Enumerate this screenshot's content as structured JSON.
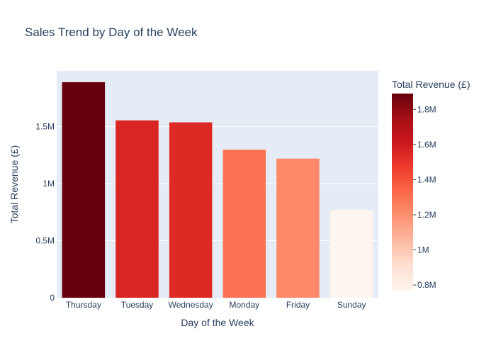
{
  "chart_data": {
    "type": "bar",
    "title": "Sales Trend by Day of the Week",
    "xlabel": "Day of the Week",
    "ylabel": "Total Revenue (£)",
    "categories": [
      "Thursday",
      "Tuesday",
      "Wednesday",
      "Monday",
      "Friday",
      "Sunday"
    ],
    "values": [
      1890000,
      1555000,
      1538000,
      1298000,
      1220000,
      768000
    ],
    "ylim": [
      0,
      1989000
    ],
    "yticks": [
      0,
      500000,
      1000000,
      1500000
    ],
    "ytick_labels": [
      "0",
      "0.5M",
      "1M",
      "1.5M"
    ],
    "grid": true,
    "plot_background": "#e5ecf6",
    "colorscale": {
      "name": "Reds",
      "stops": [
        "#fff5f0",
        "#fee0d2",
        "#fcbba1",
        "#fc9272",
        "#fb6a4a",
        "#ef3b2c",
        "#cb181d",
        "#a50f15",
        "#67000d"
      ],
      "title": "Total Revenue (£)",
      "cmin": 768000,
      "cmax": 1890000,
      "ticks": [
        800000,
        1000000,
        1200000,
        1400000,
        1600000,
        1800000
      ],
      "tick_labels": [
        "0.8M",
        "1M",
        "1.2M",
        "1.4M",
        "1.6M",
        "1.8M"
      ]
    }
  }
}
